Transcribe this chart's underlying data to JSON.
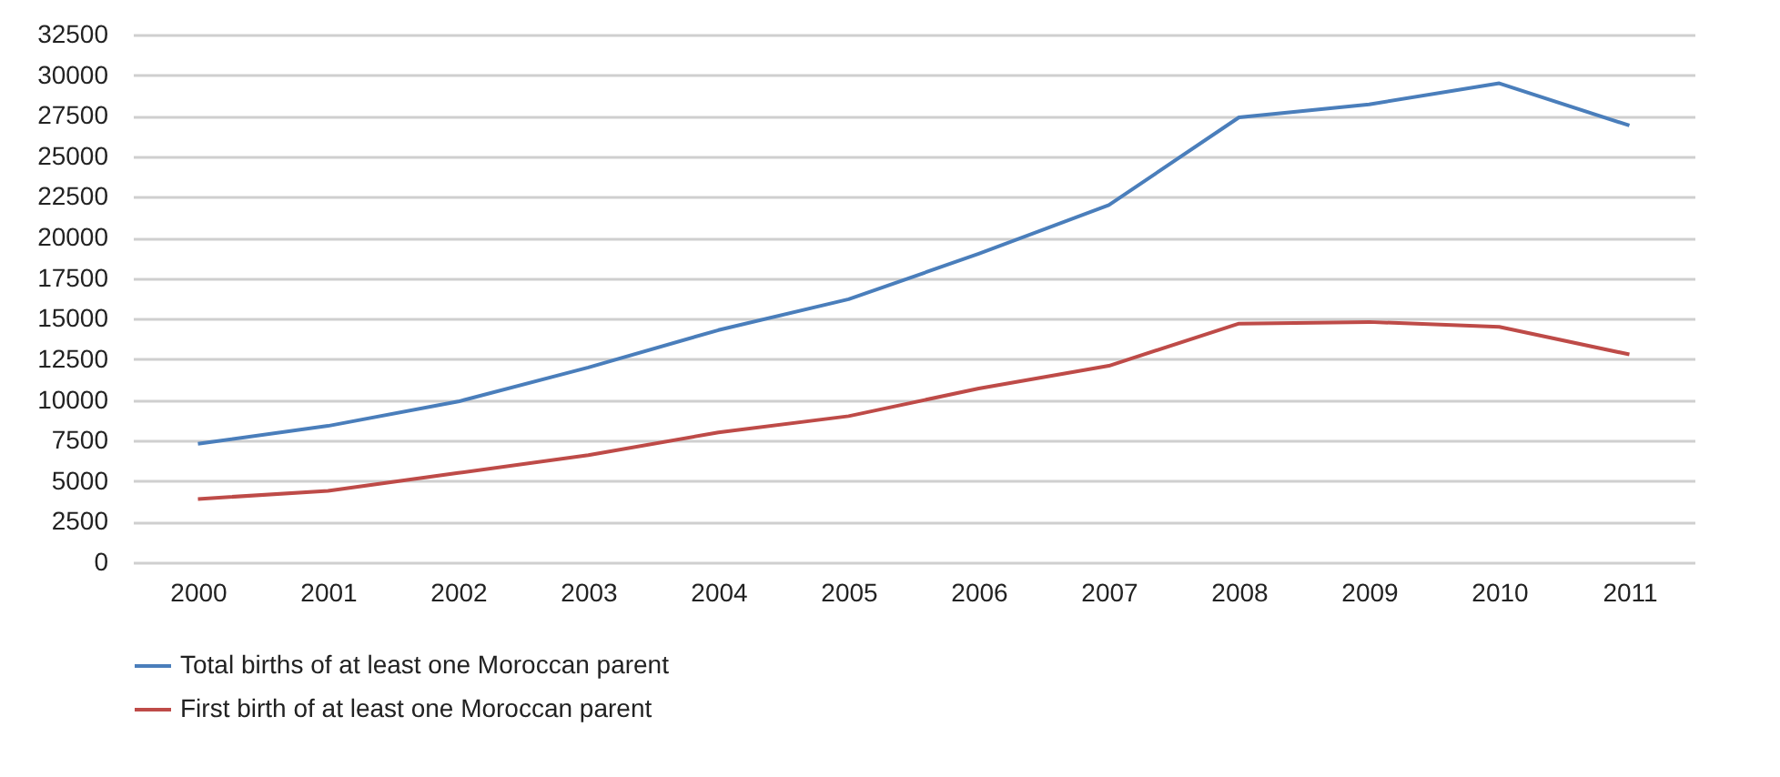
{
  "chart_data": {
    "type": "line",
    "categories": [
      "2000",
      "2001",
      "2002",
      "2003",
      "2004",
      "2005",
      "2006",
      "2007",
      "2008",
      "2009",
      "2010",
      "2011"
    ],
    "series": [
      {
        "name": "Total births of at least one Moroccan parent",
        "color": "#4a7ebb",
        "values": [
          7300,
          8400,
          9900,
          12000,
          14300,
          16200,
          19000,
          22000,
          27400,
          28200,
          29500,
          26900
        ]
      },
      {
        "name": "First birth of at least one Moroccan parent",
        "color": "#be4b48",
        "values": [
          3900,
          4400,
          5500,
          6600,
          8000,
          9000,
          10700,
          12100,
          14700,
          14800,
          14500,
          12800
        ]
      }
    ],
    "ylim": [
      0,
      32500
    ],
    "yticks": [
      0,
      2500,
      5000,
      7500,
      10000,
      12500,
      15000,
      17500,
      20000,
      22500,
      25000,
      27500,
      30000,
      32500
    ],
    "grid": "y",
    "legend": "bottom",
    "marker": "none",
    "line_style": "solid"
  }
}
